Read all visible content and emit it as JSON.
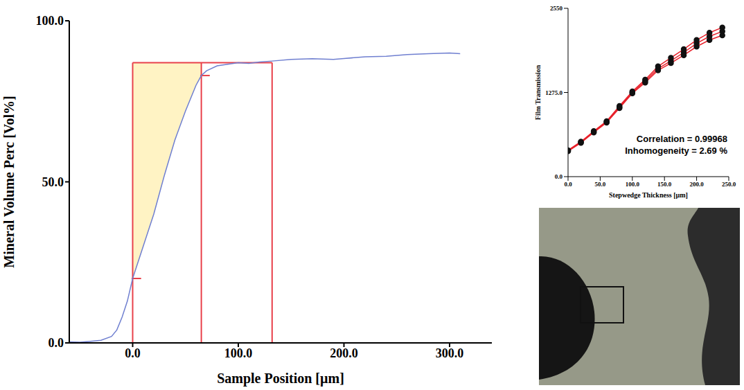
{
  "chart_data": [
    {
      "type": "line",
      "xlabel": "Sample Position [µm]",
      "ylabel": "Mineral Volume Perc [Vol%]",
      "x": [
        -60,
        -50,
        -40,
        -30,
        -20,
        -15,
        -10,
        -5,
        0,
        10,
        20,
        30,
        40,
        50,
        60,
        65,
        70,
        80,
        90,
        100,
        110,
        120,
        132,
        150,
        170,
        190,
        200,
        220,
        240,
        260,
        280,
        300,
        310
      ],
      "values": [
        0.3,
        0.2,
        0.5,
        0.8,
        2,
        4,
        8,
        13,
        20,
        30,
        40,
        52,
        63,
        72,
        80,
        83,
        84.5,
        86,
        86.5,
        87,
        86.8,
        87.2,
        87.5,
        88,
        88.2,
        88,
        88.3,
        88.8,
        89,
        89.5,
        89.8,
        90,
        89.8
      ],
      "color": "#6f7fd0",
      "xlim": [
        -60,
        340
      ],
      "xticks": [
        {
          "value": 0,
          "label": "0.0"
        },
        {
          "value": 100,
          "label": "100.0"
        },
        {
          "value": 200,
          "label": "200.0"
        },
        {
          "value": 300,
          "label": "300.0"
        }
      ],
      "ylim": [
        0,
        100
      ],
      "yticks": [
        {
          "value": 0,
          "label": "0.0"
        },
        {
          "value": 50,
          "label": "50.0"
        },
        {
          "value": 100,
          "label": "100.0"
        }
      ],
      "boundaries": [
        0,
        65,
        132
      ],
      "level": 87,
      "markers": [
        {
          "x": 0,
          "y": 20
        },
        {
          "x": 65,
          "y": 83
        }
      ]
    },
    {
      "type": "line",
      "xlabel": "Stepwedge Thickness [µm]",
      "ylabel": "Film Transmission",
      "annotations": [
        "Correlation = 0.99968",
        "Inhomogeneity = 2.69 %"
      ],
      "x": [
        0,
        20,
        40,
        60,
        80,
        100,
        120,
        140,
        160,
        180,
        200,
        220,
        240
      ],
      "series": [
        {
          "color": "#e8202a",
          "marker": "circle",
          "values": [
            393,
            521,
            680,
            829,
            1052,
            1275,
            1445,
            1636,
            1753,
            1881,
            2019,
            2125,
            2200
          ]
        },
        {
          "color": "#e8202a",
          "marker": "circle",
          "values": [
            400,
            530,
            690,
            840,
            1070,
            1290,
            1470,
            1670,
            1800,
            1930,
            2070,
            2180,
            2260
          ]
        },
        {
          "color": "#e8202a",
          "marker": "circle",
          "values": [
            385,
            512,
            670,
            818,
            1040,
            1262,
            1425,
            1610,
            1720,
            1840,
            1970,
            2070,
            2140
          ]
        }
      ],
      "xlim": [
        0,
        250
      ],
      "xticks": [
        {
          "value": 0,
          "label": "0.0"
        },
        {
          "value": 50,
          "label": "50.0"
        },
        {
          "value": 100,
          "label": "100.0"
        },
        {
          "value": 150,
          "label": "150.0"
        },
        {
          "value": 200,
          "label": "200.0"
        },
        {
          "value": 250,
          "label": "250.0"
        }
      ],
      "ylim": [
        0,
        2550
      ],
      "yticks": [
        {
          "value": 0,
          "label": "0.0"
        },
        {
          "value": 1275,
          "label": "1275.0"
        },
        2550
      ]
    }
  ]
}
